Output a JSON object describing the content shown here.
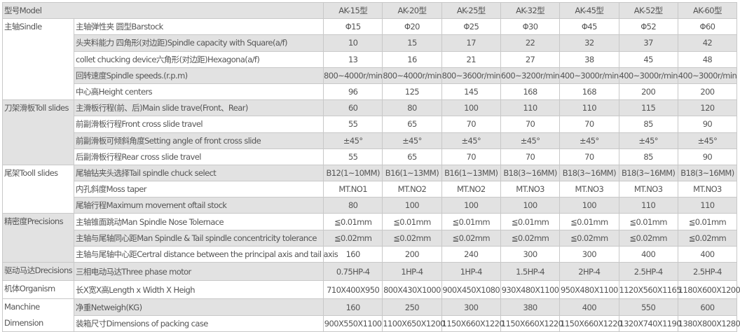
{
  "header": {
    "label": "型号Model",
    "models": [
      "AK-15型",
      "AK-20型",
      "AK-25型",
      "AK-32型",
      "AK-45型",
      "AK-52型",
      "AK-60型"
    ]
  },
  "groups": [
    {
      "label": "主轴Sindle",
      "shade": "white",
      "rows": [
        {
          "label": "主轴弹性夹 圆型Barstock",
          "values": [
            "Φ15",
            "Φ20",
            "Φ25",
            "Φ30",
            "Φ45",
            "Φ52",
            "Φ60"
          ]
        },
        {
          "label": "头夹料能力 四角形(对边距)Spindle capacity with Square(a/f)",
          "values": [
            "10",
            "15",
            "17",
            "22",
            "32",
            "37",
            "42"
          ]
        },
        {
          "label": "collet chucking device六角形(对边距)Hexagona(a/f)",
          "values": [
            "13",
            "16",
            "21",
            "27",
            "38",
            "45",
            "48"
          ]
        },
        {
          "label": "回转速度Spindle speeds.(r.p.m)",
          "values": [
            "800~4000r/min",
            "800~4000r/min",
            "800~3600r/min",
            "600~3200r/min",
            "400~3000r/min",
            "400~3000r/min",
            "400~3000r/min"
          ]
        },
        {
          "label": "中心高Height centers",
          "values": [
            "96",
            "125",
            "145",
            "168",
            "168",
            "200",
            "200"
          ]
        }
      ]
    },
    {
      "label": "刀架滑板Toll slides",
      "shade": "gray",
      "rows": [
        {
          "label": "主滑板行程(前、后)Main slide trave(Front、Rear)",
          "values": [
            "60",
            "80",
            "100",
            "110",
            "110",
            "115",
            "120"
          ]
        },
        {
          "label": "前副滑板行程Front cross slide travel",
          "values": [
            "55",
            "65",
            "70",
            "70",
            "70",
            "85",
            "90"
          ]
        },
        {
          "label": "前副滑板可倾斜角度Setting angle of front cross slide",
          "values": [
            "±45°",
            "±45°",
            "±45°",
            "±45°",
            "±45°",
            "±45°",
            "±45°"
          ]
        },
        {
          "label": "后副滑板行程Rear cross slide travel",
          "values": [
            "55",
            "65",
            "70",
            "70",
            "70",
            "85",
            "90"
          ]
        }
      ]
    },
    {
      "label": "尾架Tooll slides",
      "shade": "white",
      "rows": [
        {
          "label": "尾轴钻夹头选择Tail spindle chuck select",
          "values": [
            "B12(1~10MM)",
            "B16(1~13MM)",
            "B16(1~13MM)",
            "B18(3~16MM)",
            "B18(3~16MM)",
            "B18(3~16MM)",
            "B18(3~16MM)"
          ]
        },
        {
          "label": "内孔斜度Moss taper",
          "values": [
            "MT.NO1",
            "MT.NO2",
            "MT.NO2",
            "MT.NO3",
            "MT.NO3",
            "MT.NO3",
            "MT.NO3"
          ]
        },
        {
          "label": "尾轴行程Maximum movement oftail stock",
          "values": [
            "80",
            "100",
            "100",
            "100",
            "100",
            "110",
            "110"
          ]
        }
      ]
    },
    {
      "label": "精密度Precisions",
      "shade": "gray",
      "rows": [
        {
          "label": "主轴锥面跳动Man Spindle Nose Tolernace",
          "values": [
            "≦0.01mm",
            "≦0.01mm",
            "≦0.01mm",
            "≦0.01mm",
            "≦0.01mm",
            "≦0.01mm",
            "≦0.01mm"
          ]
        },
        {
          "label": "主轴与尾轴同心距Man Spindle & Tail spindle concentricity tolerance",
          "values": [
            "≦0.02mm",
            "≦0.02mm",
            "≦0.02mm",
            "≦0.02mm",
            "≦0.02mm",
            "≦0.02mm",
            "≦0.02mm"
          ]
        },
        {
          "label": "主轴与尾轴中心距Certral distance between the principal axis and tail axis",
          "values": [
            "160",
            "200",
            "240",
            "300",
            "300",
            "400",
            "400"
          ]
        }
      ]
    },
    {
      "label": "驱动马达Drecisions",
      "shade": "gray",
      "rows": [
        {
          "label": "三相电动马达Three phase motor",
          "values": [
            "0.75HP-4",
            "1HP-4",
            "1HP-4",
            "1.5HP-4",
            "2HP-4",
            "2.5HP-4",
            "2.5HP-4"
          ]
        }
      ]
    },
    {
      "label": "机体Organism",
      "shade": "white",
      "rows": [
        {
          "label": "长X宽X高Length x Width X Heigh",
          "values": [
            "710X400X950",
            "800X430X1000",
            "900X450X1080",
            "930X480X1100",
            "950X480X1100",
            "1120X560X1165",
            "1180X600X1200"
          ]
        }
      ]
    },
    {
      "label": "Manchine",
      "label2": "Dimension",
      "shade": "white",
      "rows": [
        {
          "label": "净重Netweigh(KG)",
          "values": [
            "160",
            "250",
            "300",
            "380",
            "400",
            "550",
            "600"
          ]
        },
        {
          "label": "装箱尺寸Dimensions of packing case",
          "values": [
            "900X550X1100",
            "1100X650X1200",
            "1150X660X1220",
            "1150X660X1220",
            "1150X660X1220",
            "1320X740X1190",
            "1380X800X1280"
          ]
        }
      ]
    }
  ]
}
